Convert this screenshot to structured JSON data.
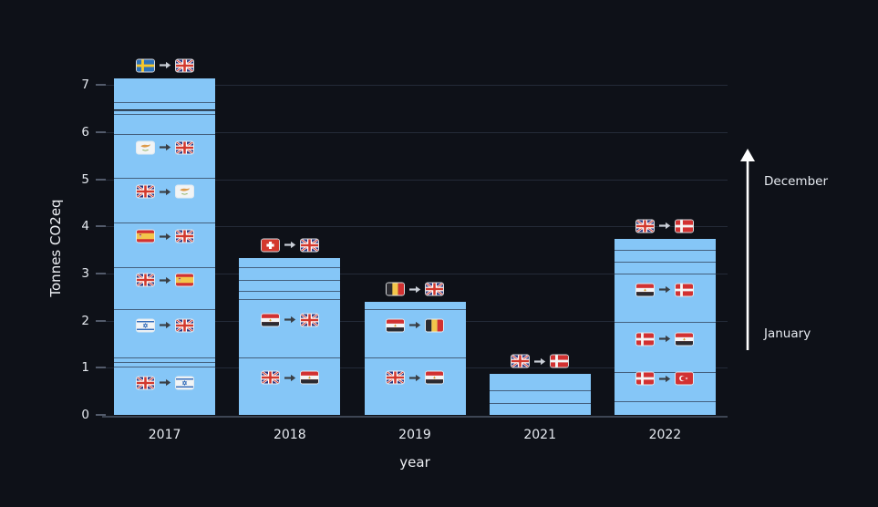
{
  "background": "#0e1118",
  "legend_arrow": {
    "top_label": "December",
    "bottom_label": "January"
  },
  "colors": {
    "bar_fill": "#85c6f7",
    "segment_divider": "#3a4c66",
    "gridline": "#242b38",
    "axis_line": "#3d4553",
    "tick_mark": "#525a6a",
    "text": "#e6eaf0",
    "route_arrow_on_bar": "#3a3f45",
    "route_arrow_on_dark": "#c9ced6",
    "month_arrow": "#ffffff"
  },
  "countries": {
    "GB": "United Kingdom",
    "SE": "Sweden",
    "CY": "Cyprus",
    "ES": "Spain",
    "IL": "Israel",
    "CH": "Switzerland",
    "EG": "Egypt",
    "BE": "Belgium",
    "DK": "Denmark",
    "TR": "Turkey"
  },
  "chart_data": {
    "type": "bar",
    "stacked": true,
    "xlabel": "year",
    "ylabel": "Tonnes CO2eq",
    "categories": [
      "2017",
      "2018",
      "2019",
      "2021",
      "2022"
    ],
    "yticks": [
      0,
      1,
      2,
      3,
      4,
      5,
      6,
      7
    ],
    "ylim": [
      0,
      7.25
    ],
    "grid": true,
    "bars": [
      {
        "year": "2017",
        "total": 7.14,
        "top_annotation": {
          "from": "SE",
          "to": "GB"
        },
        "segments": [
          {
            "value": 1.02,
            "route": {
              "from": "GB",
              "to": "IL"
            }
          },
          {
            "value": 0.1
          },
          {
            "value": 0.09
          },
          {
            "value": 1.03,
            "route": {
              "from": "IL",
              "to": "GB"
            }
          },
          {
            "value": 0.89,
            "route": {
              "from": "GB",
              "to": "ES"
            }
          },
          {
            "value": 0.96,
            "route": {
              "from": "ES",
              "to": "GB"
            }
          },
          {
            "value": 0.94,
            "route": {
              "from": "GB",
              "to": "CY"
            }
          },
          {
            "value": 0.93,
            "route": {
              "from": "CY",
              "to": "GB"
            }
          },
          {
            "value": 0.42
          },
          {
            "value": 0.09
          },
          {
            "value": 0.17
          },
          {
            "value": 0.5
          }
        ]
      },
      {
        "year": "2018",
        "total": 3.33,
        "top_annotation": {
          "from": "CH",
          "to": "GB"
        },
        "segments": [
          {
            "value": 1.22,
            "route": {
              "from": "GB",
              "to": "EG"
            }
          },
          {
            "value": 1.24,
            "route": {
              "from": "EG",
              "to": "GB"
            }
          },
          {
            "value": 0.17
          },
          {
            "value": 0.23
          },
          {
            "value": 0.27
          },
          {
            "value": 0.2
          }
        ]
      },
      {
        "year": "2019",
        "total": 2.39,
        "top_annotation": {
          "from": "BE",
          "to": "GB"
        },
        "segments": [
          {
            "value": 1.22,
            "route": {
              "from": "GB",
              "to": "EG"
            }
          },
          {
            "value": 1.02,
            "route": {
              "from": "EG",
              "to": "BE"
            }
          },
          {
            "value": 0.15
          }
        ]
      },
      {
        "year": "2021",
        "total": 0.87,
        "top_annotation": {
          "from": "GB",
          "to": "DK"
        },
        "segments": [
          {
            "value": 0.26
          },
          {
            "value": 0.26
          },
          {
            "value": 0.35
          }
        ]
      },
      {
        "year": "2022",
        "total": 3.74,
        "top_annotation": {
          "from": "GB",
          "to": "DK"
        },
        "segments": [
          {
            "value": 0.29
          },
          {
            "value": 0.61,
            "route": {
              "from": "DK",
              "to": "TR"
            }
          },
          {
            "value": 1.07,
            "route": {
              "from": "DK",
              "to": "EG"
            }
          },
          {
            "value": 1.03,
            "route": {
              "from": "EG",
              "to": "DK"
            }
          },
          {
            "value": 0.24
          },
          {
            "value": 0.27
          },
          {
            "value": 0.23
          }
        ]
      }
    ]
  }
}
